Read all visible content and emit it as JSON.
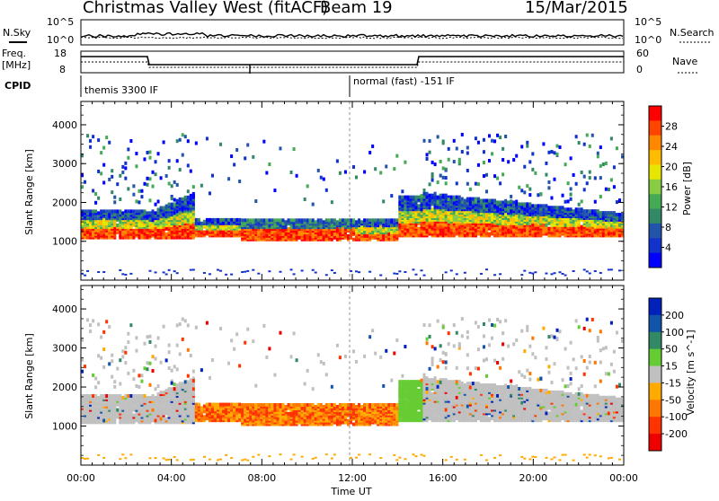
{
  "header": {
    "radar": "Christmas Valley West (fitACF)",
    "beam": "Beam 19",
    "date": "15/Mar/2015"
  },
  "meta_rows": {
    "nsky_label": "N.Sky",
    "nsearch_label": "N.Search",
    "nsky_ticks": [
      "10^5",
      "10^0"
    ],
    "nsearch_ticks": [
      "10^5",
      "10^0"
    ],
    "freq_label_1": "Freq.",
    "freq_label_2": "[MHz]",
    "freq_ticks": [
      "18",
      "8"
    ],
    "nave_label": "Nave",
    "nave_ticks": [
      "60",
      "0"
    ],
    "cpid_label": "CPID",
    "cpid_segments": [
      "themis 3300 IF",
      "normal (fast) -151 IF"
    ]
  },
  "chart_data": [
    {
      "type": "heatmap",
      "name": "power-panel",
      "ylabel": "Slant Range [km]",
      "ylim": [
        0,
        4600
      ],
      "yticks": [
        1000,
        2000,
        3000,
        4000
      ],
      "xlim": [
        0,
        24
      ],
      "colorbar": {
        "label": "Power [dB]",
        "ticks": [
          "28",
          "24",
          "20",
          "16",
          "12",
          "8",
          "4"
        ],
        "colors": [
          "#ff0000",
          "#ff4400",
          "#ff8800",
          "#ffbb00",
          "#e6e600",
          "#88cc44",
          "#44aa55",
          "#338866",
          "#2255aa",
          "#1133cc",
          "#0000ff"
        ]
      }
    },
    {
      "type": "heatmap",
      "name": "velocity-panel",
      "ylabel": "Slant Range [km]",
      "xlabel": "Time UT",
      "ylim": [
        0,
        4600
      ],
      "yticks": [
        1000,
        2000,
        3000,
        4000
      ],
      "xlim": [
        0,
        24
      ],
      "xticks": [
        "00:00",
        "04:00",
        "08:00",
        "12:00",
        "16:00",
        "20:00",
        "00:00"
      ],
      "colorbar": {
        "label": "Velocity [m s^-1]",
        "ticks": [
          "200",
          "100",
          "50",
          "15",
          "-15",
          "-50",
          "-100",
          "-200"
        ],
        "colors": [
          "#0022bb",
          "#1155aa",
          "#338866",
          "#66cc33",
          "#c0c0c0",
          "#ffaa00",
          "#ff7700",
          "#ff3300",
          "#ee0000"
        ]
      }
    }
  ]
}
